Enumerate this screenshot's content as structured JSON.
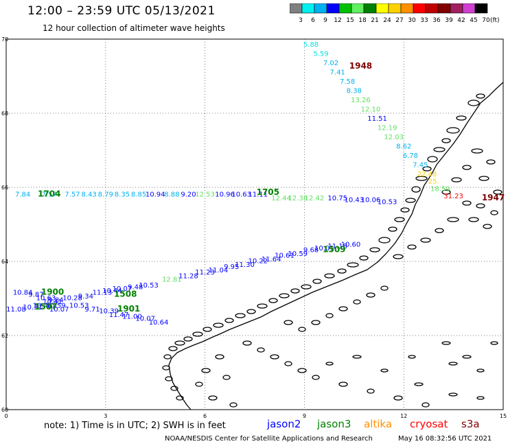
{
  "title": "12:00 – 23:59 UTC 05/13/2021",
  "subtitle": "12 hour collection of altimeter wave heights",
  "colorbar": {
    "labels": [
      "3",
      "6",
      "9",
      "12",
      "15",
      "18",
      "21",
      "24",
      "27",
      "30",
      "33",
      "36",
      "39",
      "42",
      "45",
      "70"
    ],
    "unit": "(ft)",
    "colors": [
      "#808080",
      "#00f0f0",
      "#00b0f0",
      "#0000ff",
      "#00c000",
      "#60f060",
      "#008000",
      "#ffff00",
      "#ffd000",
      "#ff9000",
      "#ff0000",
      "#c00000",
      "#800000",
      "#a02060",
      "#d040d0",
      "#000000"
    ]
  },
  "axes": {
    "x_ticks": [
      "0",
      "3",
      "6",
      "9",
      "12",
      "15"
    ],
    "y_ticks": [
      "70",
      "68",
      "66",
      "64",
      "62",
      "60"
    ],
    "xlim": [
      0,
      15
    ],
    "ylim": [
      60,
      70
    ]
  },
  "note": "note:  1) Time is in UTC;  2) SWH is in feet",
  "legend": [
    {
      "name": "jason2",
      "color": "#0000ff"
    },
    {
      "name": "jason3",
      "color": "#008000"
    },
    {
      "name": "altika",
      "color": "#ff9000"
    },
    {
      "name": "cryosat",
      "color": "#ff0000"
    },
    {
      "name": "s3a",
      "color": "#800000"
    }
  ],
  "footer_left": "NOAA/NESDIS Center for Satellite Applications and Research",
  "footer_right": "May 16 08:32:56 UTC 2021",
  "passes": [
    {
      "id": "1948",
      "color": "#800000",
      "lon": 10.7,
      "lat": 69.2,
      "points": [
        {
          "lon": 9.2,
          "lat": 69.8,
          "v": "5.88",
          "c": "#00e0e0"
        },
        {
          "lon": 9.5,
          "lat": 69.55,
          "v": "5.59",
          "c": "#00e0e0"
        },
        {
          "lon": 9.8,
          "lat": 69.3,
          "v": "7.02",
          "c": "#00b0f0"
        },
        {
          "lon": 10.0,
          "lat": 69.05,
          "v": "7.41",
          "c": "#00b0f0"
        },
        {
          "lon": 10.3,
          "lat": 68.8,
          "v": "7.58",
          "c": "#00b0f0"
        },
        {
          "lon": 10.5,
          "lat": 68.55,
          "v": "8.38",
          "c": "#00b0f0"
        },
        {
          "lon": 10.7,
          "lat": 68.3,
          "v": "13.26",
          "c": "#60e060"
        },
        {
          "lon": 11.0,
          "lat": 68.05,
          "v": "12.10",
          "c": "#60e060"
        },
        {
          "lon": 11.2,
          "lat": 67.8,
          "v": "11.51",
          "c": "#0000ff"
        },
        {
          "lon": 11.5,
          "lat": 67.55,
          "v": "12.19",
          "c": "#60e060"
        },
        {
          "lon": 11.7,
          "lat": 67.3,
          "v": "12.03",
          "c": "#60e060"
        },
        {
          "lon": 12.0,
          "lat": 67.05,
          "v": "8.62",
          "c": "#00b0f0"
        },
        {
          "lon": 12.2,
          "lat": 66.8,
          "v": "6.78",
          "c": "#00b0f0"
        },
        {
          "lon": 12.5,
          "lat": 66.55,
          "v": "7.45",
          "c": "#00b0f0"
        },
        {
          "lon": 12.7,
          "lat": 66.3,
          "v": "22.48",
          "c": "#ffd000"
        },
        {
          "lon": 12.9,
          "lat": 66.1,
          "v": "25.",
          "c": "#ffd000"
        },
        {
          "lon": 13.1,
          "lat": 65.9,
          "v": "18.59",
          "c": "#60e060"
        },
        {
          "lon": 13.5,
          "lat": 65.7,
          "v": "31.23",
          "c": "#ff0000"
        }
      ]
    },
    {
      "id": "1947",
      "color": "#800000",
      "lon": 14.7,
      "lat": 65.65,
      "points": []
    },
    {
      "id": "1704",
      "color": "#008000",
      "lon": 1.3,
      "lat": 65.75,
      "points": [
        {
          "lon": 0.5,
          "lat": 65.75,
          "v": "7.84",
          "c": "#00b0f0"
        },
        {
          "lon": 1.3,
          "lat": 65.75,
          "v": "7.57",
          "c": "#00b0f0"
        },
        {
          "lon": 2.0,
          "lat": 65.75,
          "v": "7.57",
          "c": "#00b0f0"
        },
        {
          "lon": 2.5,
          "lat": 65.75,
          "v": "8.43",
          "c": "#00b0f0"
        },
        {
          "lon": 3.0,
          "lat": 65.75,
          "v": "8.79",
          "c": "#00b0f0"
        },
        {
          "lon": 3.5,
          "lat": 65.75,
          "v": "8.35",
          "c": "#00b0f0"
        },
        {
          "lon": 4.0,
          "lat": 65.75,
          "v": "8.85",
          "c": "#00b0f0"
        },
        {
          "lon": 4.5,
          "lat": 65.75,
          "v": "10.94",
          "c": "#0000ff"
        },
        {
          "lon": 5.0,
          "lat": 65.75,
          "v": "8.88",
          "c": "#00b0f0"
        },
        {
          "lon": 5.5,
          "lat": 65.75,
          "v": "9.20",
          "c": "#0000ff"
        },
        {
          "lon": 6.0,
          "lat": 65.75,
          "v": "12.53",
          "c": "#60e060"
        },
        {
          "lon": 6.6,
          "lat": 65.75,
          "v": "10.96",
          "c": "#0000ff"
        },
        {
          "lon": 7.1,
          "lat": 65.75,
          "v": "10.63",
          "c": "#0000ff"
        },
        {
          "lon": 7.6,
          "lat": 65.75,
          "v": "11.11",
          "c": "#0000ff"
        },
        {
          "lon": 8.3,
          "lat": 65.65,
          "v": "12.44",
          "c": "#60e060"
        },
        {
          "lon": 8.8,
          "lat": 65.65,
          "v": "12.38",
          "c": "#60e060"
        },
        {
          "lon": 9.3,
          "lat": 65.65,
          "v": "12.42",
          "c": "#60e060"
        },
        {
          "lon": 10.0,
          "lat": 65.65,
          "v": "10.75",
          "c": "#0000ff"
        },
        {
          "lon": 10.5,
          "lat": 65.6,
          "v": "10.43",
          "c": "#0000ff"
        },
        {
          "lon": 11.0,
          "lat": 65.6,
          "v": "10.06",
          "c": "#0000ff"
        },
        {
          "lon": 11.5,
          "lat": 65.55,
          "v": "10.53",
          "c": "#0000ff"
        }
      ]
    },
    {
      "id": "1705",
      "color": "#008000",
      "lon": 7.9,
      "lat": 65.8,
      "points": []
    },
    {
      "id": "1509",
      "color": "#008000",
      "lon": 9.9,
      "lat": 64.25,
      "points": [
        {
          "lon": 4.3,
          "lat": 63.3,
          "v": "10.53",
          "c": "#0000ff"
        },
        {
          "lon": 5.0,
          "lat": 63.45,
          "v": "12.81",
          "c": "#60e060"
        },
        {
          "lon": 5.5,
          "lat": 63.55,
          "v": "11.28",
          "c": "#0000ff"
        },
        {
          "lon": 6.0,
          "lat": 63.65,
          "v": "11.23",
          "c": "#0000ff"
        },
        {
          "lon": 6.4,
          "lat": 63.7,
          "v": "11.04",
          "c": "#0000ff"
        },
        {
          "lon": 6.8,
          "lat": 63.8,
          "v": "9.95",
          "c": "#0000ff"
        },
        {
          "lon": 7.2,
          "lat": 63.85,
          "v": "11.30",
          "c": "#0000ff"
        },
        {
          "lon": 7.6,
          "lat": 63.95,
          "v": "10.22",
          "c": "#0000ff"
        },
        {
          "lon": 8.0,
          "lat": 64.0,
          "v": "11.64",
          "c": "#0000ff"
        },
        {
          "lon": 8.4,
          "lat": 64.1,
          "v": "10.61",
          "c": "#0000ff"
        },
        {
          "lon": 8.8,
          "lat": 64.15,
          "v": "10.59",
          "c": "#0000ff"
        },
        {
          "lon": 9.2,
          "lat": 64.25,
          "v": "9.68",
          "c": "#0000ff"
        },
        {
          "lon": 9.6,
          "lat": 64.3,
          "v": "10.01",
          "c": "#0000ff"
        },
        {
          "lon": 10.0,
          "lat": 64.35,
          "v": "11.18",
          "c": "#0000ff"
        },
        {
          "lon": 10.4,
          "lat": 64.4,
          "v": "10.60",
          "c": "#0000ff"
        }
      ]
    },
    {
      "id": "1508",
      "color": "#008000",
      "lon": 3.6,
      "lat": 63.05,
      "points": [
        {
          "lon": 1.5,
          "lat": 62.9,
          "v": "9.84",
          "c": "#0000ff"
        },
        {
          "lon": 2.0,
          "lat": 62.95,
          "v": "10.28",
          "c": "#0000ff"
        },
        {
          "lon": 2.4,
          "lat": 63.0,
          "v": "9.34",
          "c": "#0000ff"
        },
        {
          "lon": 2.9,
          "lat": 63.1,
          "v": "11.13",
          "c": "#0000ff"
        },
        {
          "lon": 3.2,
          "lat": 63.15,
          "v": "10.44",
          "c": "#0000ff"
        },
        {
          "lon": 3.5,
          "lat": 63.2,
          "v": "10.07",
          "c": "#0000ff"
        },
        {
          "lon": 3.9,
          "lat": 63.25,
          "v": "9.48",
          "c": "#0000ff"
        }
      ]
    },
    {
      "id": "1900",
      "color": "#008000",
      "lon": 1.4,
      "lat": 63.1,
      "points": [
        {
          "lon": 0.5,
          "lat": 63.1,
          "v": "10.84",
          "c": "#0000ff"
        },
        {
          "lon": 0.9,
          "lat": 63.05,
          "v": "9.87",
          "c": "#0000ff"
        },
        {
          "lon": 1.2,
          "lat": 62.95,
          "v": "10.63",
          "c": "#0000ff"
        },
        {
          "lon": 1.4,
          "lat": 62.85,
          "v": "10.41",
          "c": "#0000ff"
        },
        {
          "lon": 1.5,
          "lat": 62.75,
          "v": "10.59",
          "c": "#0000ff"
        },
        {
          "lon": 1.6,
          "lat": 62.65,
          "v": "10.07",
          "c": "#0000ff"
        }
      ]
    },
    {
      "id": "1507",
      "color": "#008000",
      "lon": 1.2,
      "lat": 62.7,
      "points": [
        {
          "lon": 0.3,
          "lat": 62.65,
          "v": "11.08",
          "c": "#0000ff"
        },
        {
          "lon": 0.8,
          "lat": 62.7,
          "v": "10.31",
          "c": "#0000ff"
        },
        {
          "lon": 1.1,
          "lat": 62.75,
          "v": "10.48",
          "c": "#0000ff"
        }
      ]
    },
    {
      "id": "1901",
      "color": "#008000",
      "lon": 3.7,
      "lat": 62.65,
      "points": [
        {
          "lon": 2.2,
          "lat": 62.75,
          "v": "10.53",
          "c": "#0000ff"
        },
        {
          "lon": 2.6,
          "lat": 62.65,
          "v": "9.71",
          "c": "#0000ff"
        },
        {
          "lon": 3.1,
          "lat": 62.6,
          "v": "10.39",
          "c": "#0000ff"
        },
        {
          "lon": 3.4,
          "lat": 62.5,
          "v": "11.47",
          "c": "#0000ff"
        },
        {
          "lon": 3.8,
          "lat": 62.45,
          "v": "11.00",
          "c": "#0000ff"
        },
        {
          "lon": 4.2,
          "lat": 62.4,
          "v": "10.07",
          "c": "#0000ff"
        },
        {
          "lon": 4.6,
          "lat": 62.3,
          "v": "10.64",
          "c": "#0000ff"
        }
      ]
    }
  ]
}
